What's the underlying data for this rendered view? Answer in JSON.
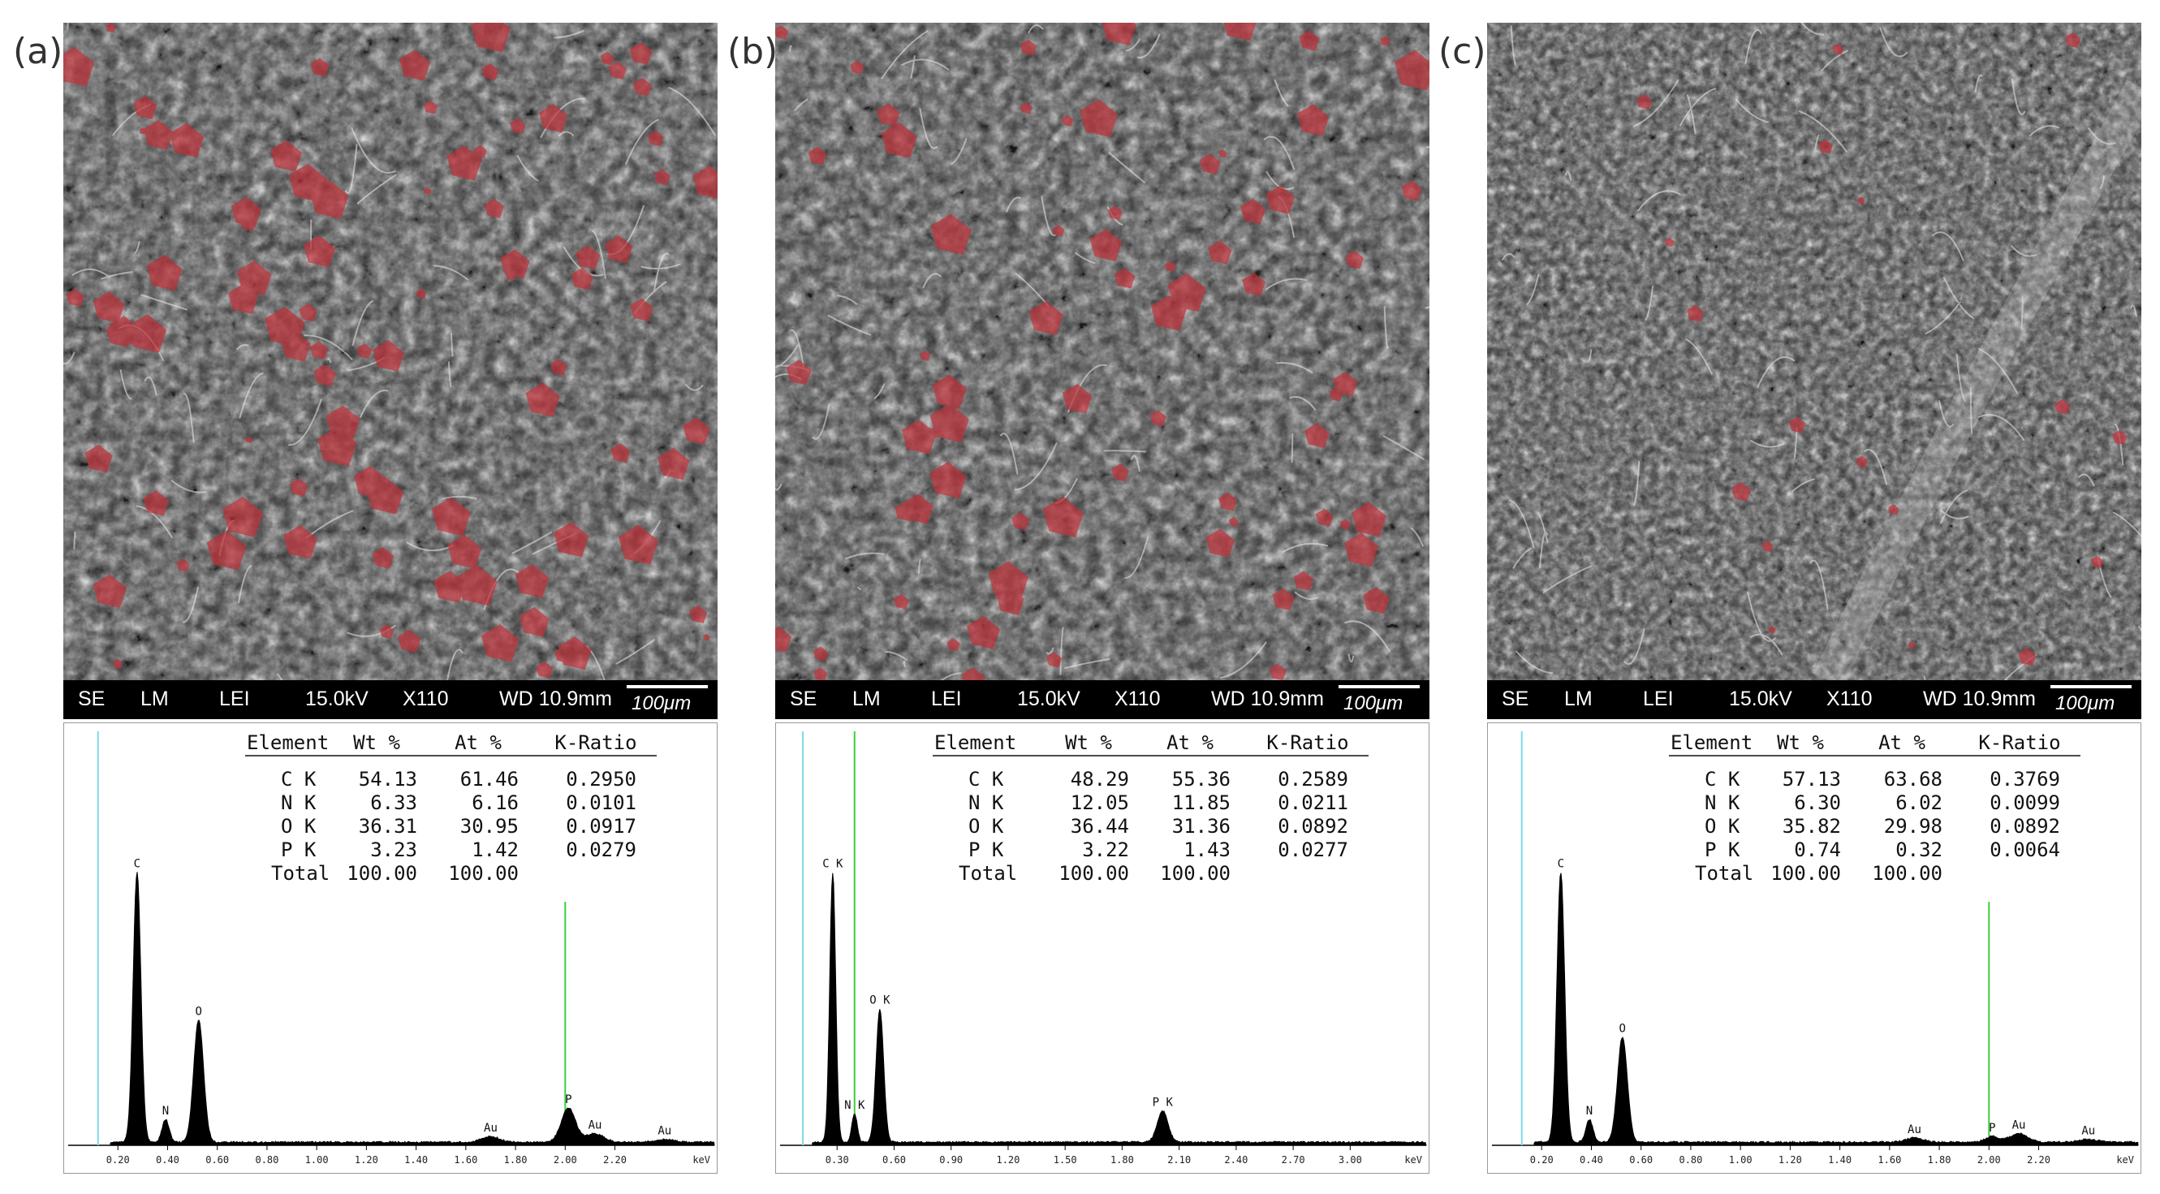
{
  "figure": {
    "panels": [
      {
        "label": "(a)",
        "sem_bar": {
          "se": "SE",
          "lm": "LM",
          "lei": "LEI",
          "kv": "15.0kV",
          "mag": "X110",
          "wd": "WD 10.9mm",
          "scale": "100μm"
        },
        "table": {
          "headers": [
            "Element",
            "Wt %",
            "At %",
            "K-Ratio"
          ],
          "rows": [
            [
              "C K",
              "54.13",
              "61.46",
              "0.2950"
            ],
            [
              "N K",
              "6.33",
              "6.16",
              "0.0101"
            ],
            [
              "O K",
              "36.31",
              "30.95",
              "0.0917"
            ],
            [
              "P K",
              "3.23",
              "1.42",
              "0.0279"
            ]
          ],
          "total": [
            "Total",
            "100.00",
            "100.00"
          ]
        },
        "ticks": [
          "0.20",
          "0.40",
          "0.60",
          "0.80",
          "1.00",
          "1.20",
          "1.40",
          "1.60",
          "1.80",
          "2.00",
          "2.20"
        ],
        "unit": "keV",
        "peak_labels": [
          "C",
          "N",
          "O",
          "Au",
          "P",
          "Au",
          "Au"
        ],
        "chart_data": {
          "type": "line",
          "xlabel": "keV",
          "xlim": [
            0.0,
            2.6
          ],
          "ylim": [
            0,
            1.0
          ],
          "peaks": [
            {
              "label": "C",
              "x": 0.277,
              "y": 0.95
            },
            {
              "label": "N",
              "x": 0.392,
              "y": 0.08
            },
            {
              "label": "O",
              "x": 0.525,
              "y": 0.43
            },
            {
              "label": "Au",
              "x": 1.7,
              "y": 0.02
            },
            {
              "label": "P",
              "x": 2.013,
              "y": 0.12
            },
            {
              "label": "Au",
              "x": 2.12,
              "y": 0.03
            },
            {
              "label": "Au",
              "x": 2.4,
              "y": 0.01
            }
          ]
        }
      },
      {
        "label": "(b)",
        "sem_bar": {
          "se": "SE",
          "lm": "LM",
          "lei": "LEI",
          "kv": "15.0kV",
          "mag": "X110",
          "wd": "WD 10.9mm",
          "scale": "100μm"
        },
        "table": {
          "headers": [
            "Element",
            "Wt %",
            "At %",
            "K-Ratio"
          ],
          "rows": [
            [
              "C K",
              "48.29",
              "55.36",
              "0.2589"
            ],
            [
              "N K",
              "12.05",
              "11.85",
              "0.0211"
            ],
            [
              "O K",
              "36.44",
              "31.36",
              "0.0892"
            ],
            [
              "P K",
              "3.22",
              "1.43",
              "0.0277"
            ]
          ],
          "total": [
            "Total",
            "100.00",
            "100.00"
          ]
        },
        "ticks": [
          "0.30",
          "0.60",
          "0.90",
          "1.20",
          "1.50",
          "1.80",
          "2.10",
          "2.40",
          "2.70",
          "3.00"
        ],
        "unit": "keV",
        "peak_labels": [
          "C K",
          "N K",
          "O K",
          "P K"
        ],
        "chart_data": {
          "type": "line",
          "xlabel": "keV",
          "xlim": [
            0.0,
            3.4
          ],
          "ylim": [
            0,
            1.0
          ],
          "peaks": [
            {
              "label": "C K",
              "x": 0.277,
              "y": 0.95
            },
            {
              "label": "N K",
              "x": 0.392,
              "y": 0.1
            },
            {
              "label": "O K",
              "x": 0.525,
              "y": 0.47
            },
            {
              "label": "P K",
              "x": 2.013,
              "y": 0.11
            }
          ]
        }
      },
      {
        "label": "(c)",
        "sem_bar": {
          "se": "SE",
          "lm": "LM",
          "lei": "LEI",
          "kv": "15.0kV",
          "mag": "X110",
          "wd": "WD 10.9mm",
          "scale": "100μm"
        },
        "table": {
          "headers": [
            "Element",
            "Wt %",
            "At %",
            "K-Ratio"
          ],
          "rows": [
            [
              "C K",
              "57.13",
              "63.68",
              "0.3769"
            ],
            [
              "N K",
              "6.30",
              "6.02",
              "0.0099"
            ],
            [
              "O K",
              "35.82",
              "29.98",
              "0.0892"
            ],
            [
              "P K",
              "0.74",
              "0.32",
              "0.0064"
            ]
          ],
          "total": [
            "Total",
            "100.00",
            "100.00"
          ]
        },
        "ticks": [
          "0.20",
          "0.40",
          "0.60",
          "0.80",
          "1.00",
          "1.20",
          "1.40",
          "1.60",
          "1.80",
          "2.00",
          "2.20"
        ],
        "unit": "keV",
        "peak_labels": [
          "C",
          "N",
          "O",
          "Au",
          "P",
          "Au",
          "Au"
        ],
        "chart_data": {
          "type": "line",
          "xlabel": "keV",
          "xlim": [
            0.0,
            2.6
          ],
          "ylim": [
            0,
            1.0
          ],
          "peaks": [
            {
              "label": "C",
              "x": 0.277,
              "y": 0.95
            },
            {
              "label": "N",
              "x": 0.392,
              "y": 0.08
            },
            {
              "label": "O",
              "x": 0.525,
              "y": 0.37
            },
            {
              "label": "Au",
              "x": 1.7,
              "y": 0.015
            },
            {
              "label": "P",
              "x": 2.013,
              "y": 0.02
            },
            {
              "label": "Au",
              "x": 2.12,
              "y": 0.03
            },
            {
              "label": "Au",
              "x": 2.4,
              "y": 0.01
            }
          ]
        }
      }
    ],
    "colors": {
      "spectrum": "#000000",
      "marker_cyan": "#7fd8e6",
      "marker_green": "#3ad13a",
      "phosphorus_overlay": "#c0323a"
    }
  }
}
